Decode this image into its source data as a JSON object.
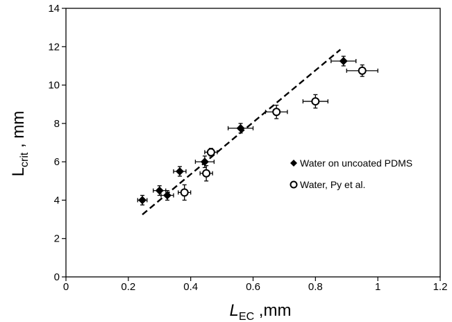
{
  "chart_data": {
    "type": "scatter",
    "xlabel": {
      "main": "L",
      "sub": "EC",
      "suffix": " ,mm"
    },
    "ylabel": {
      "main": "L",
      "sub": "crit",
      "suffix": " , mm"
    },
    "xlim": [
      0,
      1.2
    ],
    "ylim": [
      0,
      14
    ],
    "x_ticks": [
      0,
      0.2,
      0.4,
      0.6,
      0.8,
      1.0,
      1.2
    ],
    "x_tick_labels": [
      "0",
      "0.2",
      "0.4",
      "0.6",
      "0.8",
      "1",
      "1.2"
    ],
    "y_ticks": [
      0,
      2,
      4,
      6,
      8,
      10,
      12,
      14
    ],
    "y_tick_labels": [
      "0",
      "2",
      "4",
      "6",
      "8",
      "10",
      "12",
      "14"
    ],
    "grid": false,
    "legend_position": "right",
    "series": [
      {
        "name": "Water on uncoated PDMS",
        "marker": "diamond-filled",
        "points": [
          {
            "x": 0.245,
            "y": 4.0,
            "xerr": 0.015,
            "yerr": 0.25
          },
          {
            "x": 0.3,
            "y": 4.5,
            "xerr": 0.02,
            "yerr": 0.25
          },
          {
            "x": 0.325,
            "y": 4.25,
            "xerr": 0.02,
            "yerr": 0.25
          },
          {
            "x": 0.365,
            "y": 5.5,
            "xerr": 0.02,
            "yerr": 0.25
          },
          {
            "x": 0.445,
            "y": 6.0,
            "xerr": 0.03,
            "yerr": 0.3
          },
          {
            "x": 0.56,
            "y": 7.75,
            "xerr": 0.04,
            "yerr": 0.25
          },
          {
            "x": 0.89,
            "y": 11.25,
            "xerr": 0.04,
            "yerr": 0.25
          }
        ]
      },
      {
        "name": "Water, Py et al.",
        "marker": "circle-open",
        "points": [
          {
            "x": 0.38,
            "y": 4.4,
            "xerr": 0.02,
            "yerr": 0.4
          },
          {
            "x": 0.45,
            "y": 5.4,
            "xerr": 0.02,
            "yerr": 0.4
          },
          {
            "x": 0.465,
            "y": 6.5,
            "xerr": 0.02,
            "yerr": 0.2
          },
          {
            "x": 0.675,
            "y": 8.6,
            "xerr": 0.035,
            "yerr": 0.35
          },
          {
            "x": 0.8,
            "y": 9.15,
            "xerr": 0.04,
            "yerr": 0.35
          },
          {
            "x": 0.95,
            "y": 10.75,
            "xerr": 0.05,
            "yerr": 0.3
          }
        ]
      }
    ],
    "fit_line": {
      "style": "dashed",
      "x": [
        0.245,
        0.88
      ],
      "y": [
        3.25,
        11.85
      ]
    }
  }
}
